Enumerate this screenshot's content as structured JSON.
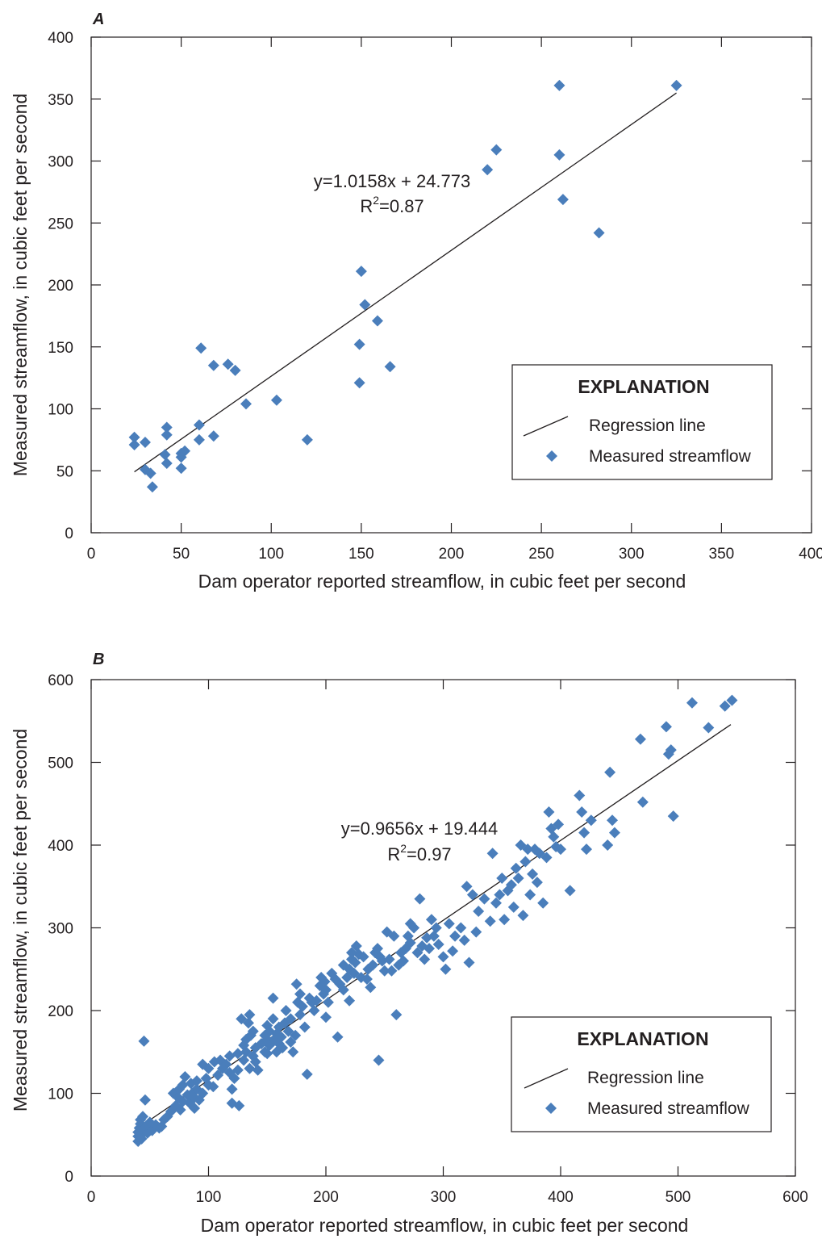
{
  "chart_data": [
    {
      "type": "scatter",
      "panel_label": "A",
      "xlabel": "Dam operator reported streamflow, in cubic feet per second",
      "ylabel": "Measured streamflow, in cubic feet per second",
      "xlim": [
        0,
        400
      ],
      "ylim": [
        0,
        400
      ],
      "xticks": [
        0,
        50,
        100,
        150,
        200,
        250,
        300,
        350,
        400
      ],
      "yticks": [
        0,
        50,
        100,
        150,
        200,
        250,
        300,
        350,
        400
      ],
      "grid": false,
      "legend": {
        "title": "EXPLANATION",
        "placement": "lower-right",
        "entries": [
          "Regression line",
          "Measured streamflow"
        ]
      },
      "regression": {
        "slope": 1.0158,
        "intercept": 24.773,
        "x_range": [
          24,
          325
        ]
      },
      "annotations": {
        "equation": "y=1.0158x + 24.773",
        "r2_prefix": "R",
        "r2_sup": "2",
        "r2_value": "=0.87"
      },
      "series": [
        {
          "marker": "diamond",
          "color": "#4a7ebb",
          "points": [
            [
              24,
              77
            ],
            [
              24,
              71
            ],
            [
              30,
              73
            ],
            [
              30,
              51
            ],
            [
              33,
              48
            ],
            [
              34,
              37
            ],
            [
              41,
              63
            ],
            [
              42,
              56
            ],
            [
              42,
              85
            ],
            [
              42,
              79
            ],
            [
              50,
              52
            ],
            [
              50,
              61
            ],
            [
              50,
              64
            ],
            [
              52,
              66
            ],
            [
              60,
              87
            ],
            [
              60,
              75
            ],
            [
              61,
              149
            ],
            [
              68,
              135
            ],
            [
              68,
              78
            ],
            [
              76,
              136
            ],
            [
              80,
              131
            ],
            [
              86,
              104
            ],
            [
              103,
              107
            ],
            [
              120,
              75
            ],
            [
              149,
              152
            ],
            [
              149,
              121
            ],
            [
              150,
              211
            ],
            [
              152,
              184
            ],
            [
              159,
              171
            ],
            [
              166,
              134
            ],
            [
              220,
              293
            ],
            [
              225,
              309
            ],
            [
              260,
              361
            ],
            [
              260,
              305
            ],
            [
              262,
              269
            ],
            [
              282,
              242
            ],
            [
              325,
              361
            ]
          ]
        }
      ]
    },
    {
      "type": "scatter",
      "panel_label": "B",
      "xlabel": "Dam operator reported streamflow, in cubic feet per second",
      "ylabel": "Measured streamflow, in cubic feet per second",
      "xlim": [
        0,
        600
      ],
      "ylim": [
        0,
        600
      ],
      "xticks": [
        0,
        100,
        200,
        300,
        400,
        500,
        600
      ],
      "yticks": [
        0,
        100,
        200,
        300,
        400,
        500,
        600
      ],
      "grid": false,
      "legend": {
        "title": "EXPLANATION",
        "placement": "lower-right",
        "entries": [
          "Regression line",
          "Measured streamflow"
        ]
      },
      "regression": {
        "slope": 0.9656,
        "intercept": 19.444,
        "x_range": [
          40,
          545
        ]
      },
      "annotations": {
        "equation": "y=0.9656x + 19.444",
        "r2_prefix": "R",
        "r2_sup": "2",
        "r2_value": "=0.97"
      },
      "series": [
        {
          "marker": "diamond",
          "color": "#4a7ebb",
          "points": [
            [
              40,
              42
            ],
            [
              40,
              48
            ],
            [
              40,
              53
            ],
            [
              41,
              58
            ],
            [
              42,
              63
            ],
            [
              42,
              68
            ],
            [
              43,
              45
            ],
            [
              43,
              50
            ],
            [
              44,
              56
            ],
            [
              44,
              72
            ],
            [
              45,
              163
            ],
            [
              46,
              92
            ],
            [
              47,
              60
            ],
            [
              48,
              52
            ],
            [
              50,
              65
            ],
            [
              52,
              55
            ],
            [
              55,
              62
            ],
            [
              58,
              58
            ],
            [
              60,
              60
            ],
            [
              62,
              68
            ],
            [
              65,
              72
            ],
            [
              68,
              78
            ],
            [
              70,
              100
            ],
            [
              72,
              85
            ],
            [
              74,
              95
            ],
            [
              75,
              105
            ],
            [
              76,
              80
            ],
            [
              78,
              110
            ],
            [
              78,
              90
            ],
            [
              80,
              120
            ],
            [
              82,
              98
            ],
            [
              84,
              88
            ],
            [
              85,
              112
            ],
            [
              86,
              100
            ],
            [
              88,
              82
            ],
            [
              88,
              95
            ],
            [
              90,
              105
            ],
            [
              90,
              115
            ],
            [
              92,
              92
            ],
            [
              95,
              100
            ],
            [
              95,
              135
            ],
            [
              98,
              118
            ],
            [
              100,
              110
            ],
            [
              100,
              130
            ],
            [
              104,
              108
            ],
            [
              105,
              138
            ],
            [
              108,
              122
            ],
            [
              110,
              140
            ],
            [
              112,
              130
            ],
            [
              115,
              135
            ],
            [
              118,
              125
            ],
            [
              118,
              145
            ],
            [
              120,
              105
            ],
            [
              120,
              88
            ],
            [
              122,
              118
            ],
            [
              125,
              128
            ],
            [
              125,
              148
            ],
            [
              126,
              85
            ],
            [
              128,
              190
            ],
            [
              130,
              140
            ],
            [
              130,
              158
            ],
            [
              132,
              150
            ],
            [
              132,
              165
            ],
            [
              134,
              185
            ],
            [
              135,
              195
            ],
            [
              135,
              130
            ],
            [
              136,
              170
            ],
            [
              138,
              145
            ],
            [
              138,
              175
            ],
            [
              140,
              155
            ],
            [
              140,
              138
            ],
            [
              142,
              128
            ],
            [
              145,
              160
            ],
            [
              148,
              150
            ],
            [
              148,
              170
            ],
            [
              150,
              148
            ],
            [
              150,
              165
            ],
            [
              150,
              182
            ],
            [
              152,
              175
            ],
            [
              152,
              158
            ],
            [
              155,
              190
            ],
            [
              155,
              215
            ],
            [
              156,
              165
            ],
            [
              158,
              150
            ],
            [
              158,
              172
            ],
            [
              160,
              180
            ],
            [
              160,
              160
            ],
            [
              162,
              168
            ],
            [
              163,
              155
            ],
            [
              165,
              185
            ],
            [
              166,
              200
            ],
            [
              168,
              175
            ],
            [
              170,
              162
            ],
            [
              170,
              190
            ],
            [
              172,
              150
            ],
            [
              174,
              170
            ],
            [
              175,
              232
            ],
            [
              176,
              210
            ],
            [
              178,
              220
            ],
            [
              178,
              195
            ],
            [
              180,
              205
            ],
            [
              182,
              180
            ],
            [
              184,
              123
            ],
            [
              186,
              215
            ],
            [
              188,
              210
            ],
            [
              190,
              200
            ],
            [
              192,
              212
            ],
            [
              195,
              230
            ],
            [
              196,
              240
            ],
            [
              198,
              220
            ],
            [
              199,
              235
            ],
            [
              200,
              192
            ],
            [
              200,
              225
            ],
            [
              202,
              210
            ],
            [
              205,
              245
            ],
            [
              208,
              238
            ],
            [
              210,
              168
            ],
            [
              212,
              232
            ],
            [
              215,
              225
            ],
            [
              215,
              255
            ],
            [
              218,
              240
            ],
            [
              220,
              250
            ],
            [
              220,
              212
            ],
            [
              222,
              270
            ],
            [
              222,
              262
            ],
            [
              224,
              245
            ],
            [
              225,
              258
            ],
            [
              226,
              278
            ],
            [
              228,
              268
            ],
            [
              230,
              240
            ],
            [
              232,
              265
            ],
            [
              235,
              238
            ],
            [
              236,
              250
            ],
            [
              238,
              228
            ],
            [
              240,
              255
            ],
            [
              242,
              270
            ],
            [
              244,
              275
            ],
            [
              245,
              140
            ],
            [
              246,
              265
            ],
            [
              248,
              260
            ],
            [
              250,
              248
            ],
            [
              252,
              295
            ],
            [
              254,
              262
            ],
            [
              256,
              248
            ],
            [
              258,
              290
            ],
            [
              260,
              195
            ],
            [
              262,
              255
            ],
            [
              264,
              270
            ],
            [
              266,
              260
            ],
            [
              268,
              275
            ],
            [
              270,
              290
            ],
            [
              272,
              282
            ],
            [
              272,
              305
            ],
            [
              275,
              300
            ],
            [
              278,
              270
            ],
            [
              280,
              335
            ],
            [
              282,
              278
            ],
            [
              284,
              262
            ],
            [
              286,
              288
            ],
            [
              288,
              275
            ],
            [
              290,
              310
            ],
            [
              292,
              290
            ],
            [
              294,
              300
            ],
            [
              296,
              280
            ],
            [
              300,
              265
            ],
            [
              302,
              250
            ],
            [
              305,
              305
            ],
            [
              308,
              272
            ],
            [
              310,
              290
            ],
            [
              315,
              300
            ],
            [
              318,
              285
            ],
            [
              320,
              350
            ],
            [
              322,
              258
            ],
            [
              325,
              340
            ],
            [
              328,
              295
            ],
            [
              330,
              320
            ],
            [
              335,
              335
            ],
            [
              340,
              308
            ],
            [
              342,
              390
            ],
            [
              345,
              330
            ],
            [
              348,
              340
            ],
            [
              350,
              360
            ],
            [
              352,
              310
            ],
            [
              355,
              345
            ],
            [
              358,
              352
            ],
            [
              360,
              325
            ],
            [
              362,
              372
            ],
            [
              364,
              360
            ],
            [
              366,
              400
            ],
            [
              368,
              315
            ],
            [
              370,
              380
            ],
            [
              372,
              395
            ],
            [
              374,
              340
            ],
            [
              376,
              365
            ],
            [
              378,
              395
            ],
            [
              380,
              355
            ],
            [
              382,
              390
            ],
            [
              385,
              330
            ],
            [
              388,
              385
            ],
            [
              390,
              440
            ],
            [
              392,
              420
            ],
            [
              394,
              410
            ],
            [
              396,
              398
            ],
            [
              398,
              425
            ],
            [
              400,
              395
            ],
            [
              408,
              345
            ],
            [
              416,
              460
            ],
            [
              418,
              440
            ],
            [
              420,
              415
            ],
            [
              422,
              395
            ],
            [
              426,
              430
            ],
            [
              440,
              400
            ],
            [
              442,
              488
            ],
            [
              444,
              430
            ],
            [
              446,
              415
            ],
            [
              468,
              528
            ],
            [
              470,
              452
            ],
            [
              490,
              543
            ],
            [
              492,
              510
            ],
            [
              494,
              515
            ],
            [
              496,
              435
            ],
            [
              512,
              572
            ],
            [
              526,
              542
            ],
            [
              540,
              568
            ],
            [
              546,
              575
            ]
          ]
        }
      ]
    }
  ]
}
